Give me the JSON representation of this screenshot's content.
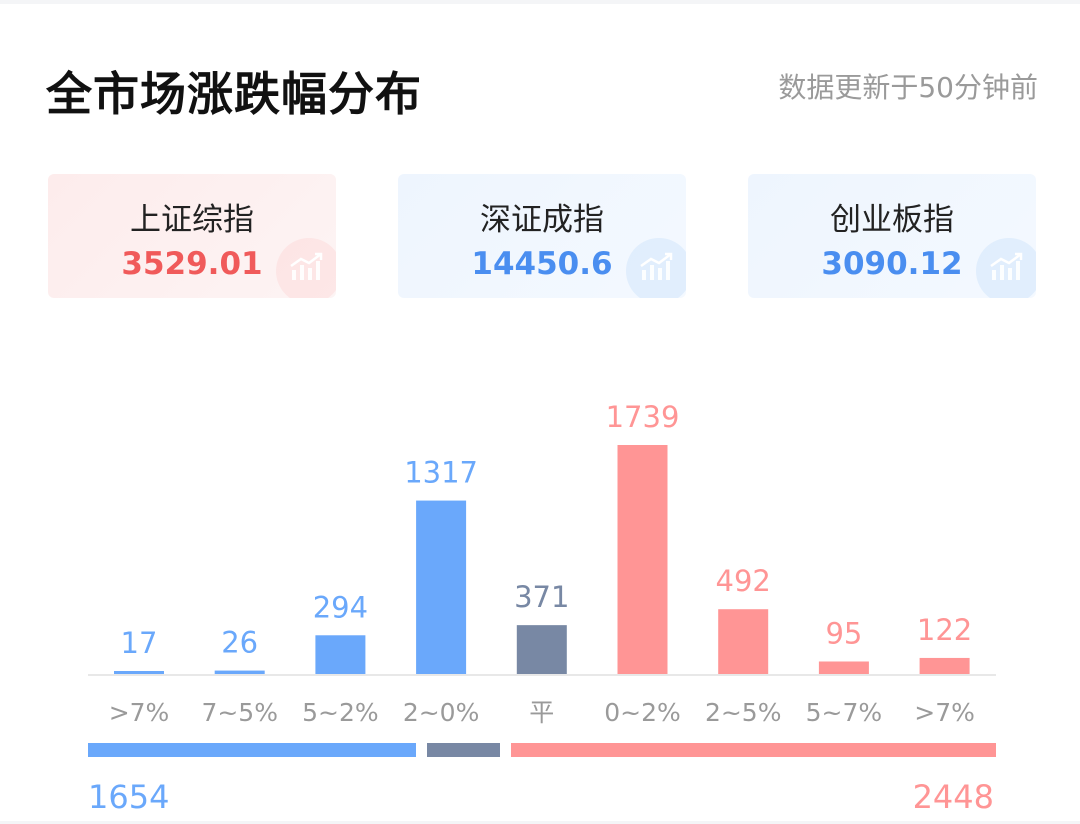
{
  "header": {
    "title": "全市场涨跌幅分布",
    "update_text": "数据更新于50分钟前"
  },
  "indices": [
    {
      "name": "上证综指",
      "value": "3529.01",
      "color": "#f05a5a",
      "theme": "red",
      "icon": "trend-up-icon"
    },
    {
      "name": "深证成指",
      "value": "14450.6",
      "color": "#4a8ef0",
      "theme": "blue",
      "icon": "trend-up-icon"
    },
    {
      "name": "创业板指",
      "value": "3090.12",
      "color": "#4a8ef0",
      "theme": "blue",
      "icon": "trend-up-icon"
    }
  ],
  "colors": {
    "down": "#6aa8fb",
    "flat": "#7888a4",
    "up": "#ff9595",
    "axis": "#e8e8e8",
    "tick": "#9a9a9a"
  },
  "chart_data": {
    "type": "bar",
    "categories": [
      ">7%",
      "7~5%",
      "5~2%",
      "2~0%",
      "平",
      "0~2%",
      "2~5%",
      "5~7%",
      ">7%"
    ],
    "values": [
      17,
      26,
      294,
      1317,
      371,
      1739,
      492,
      95,
      122
    ],
    "groups": [
      "down",
      "down",
      "down",
      "down",
      "flat",
      "up",
      "up",
      "up",
      "up"
    ],
    "title": "全市场涨跌幅分布",
    "ylim": [
      0,
      1739
    ],
    "grid": false
  },
  "summary": {
    "down_total": 1654,
    "flat_total": 371,
    "up_total": 2448,
    "down_label": "1654",
    "up_label": "2448"
  }
}
